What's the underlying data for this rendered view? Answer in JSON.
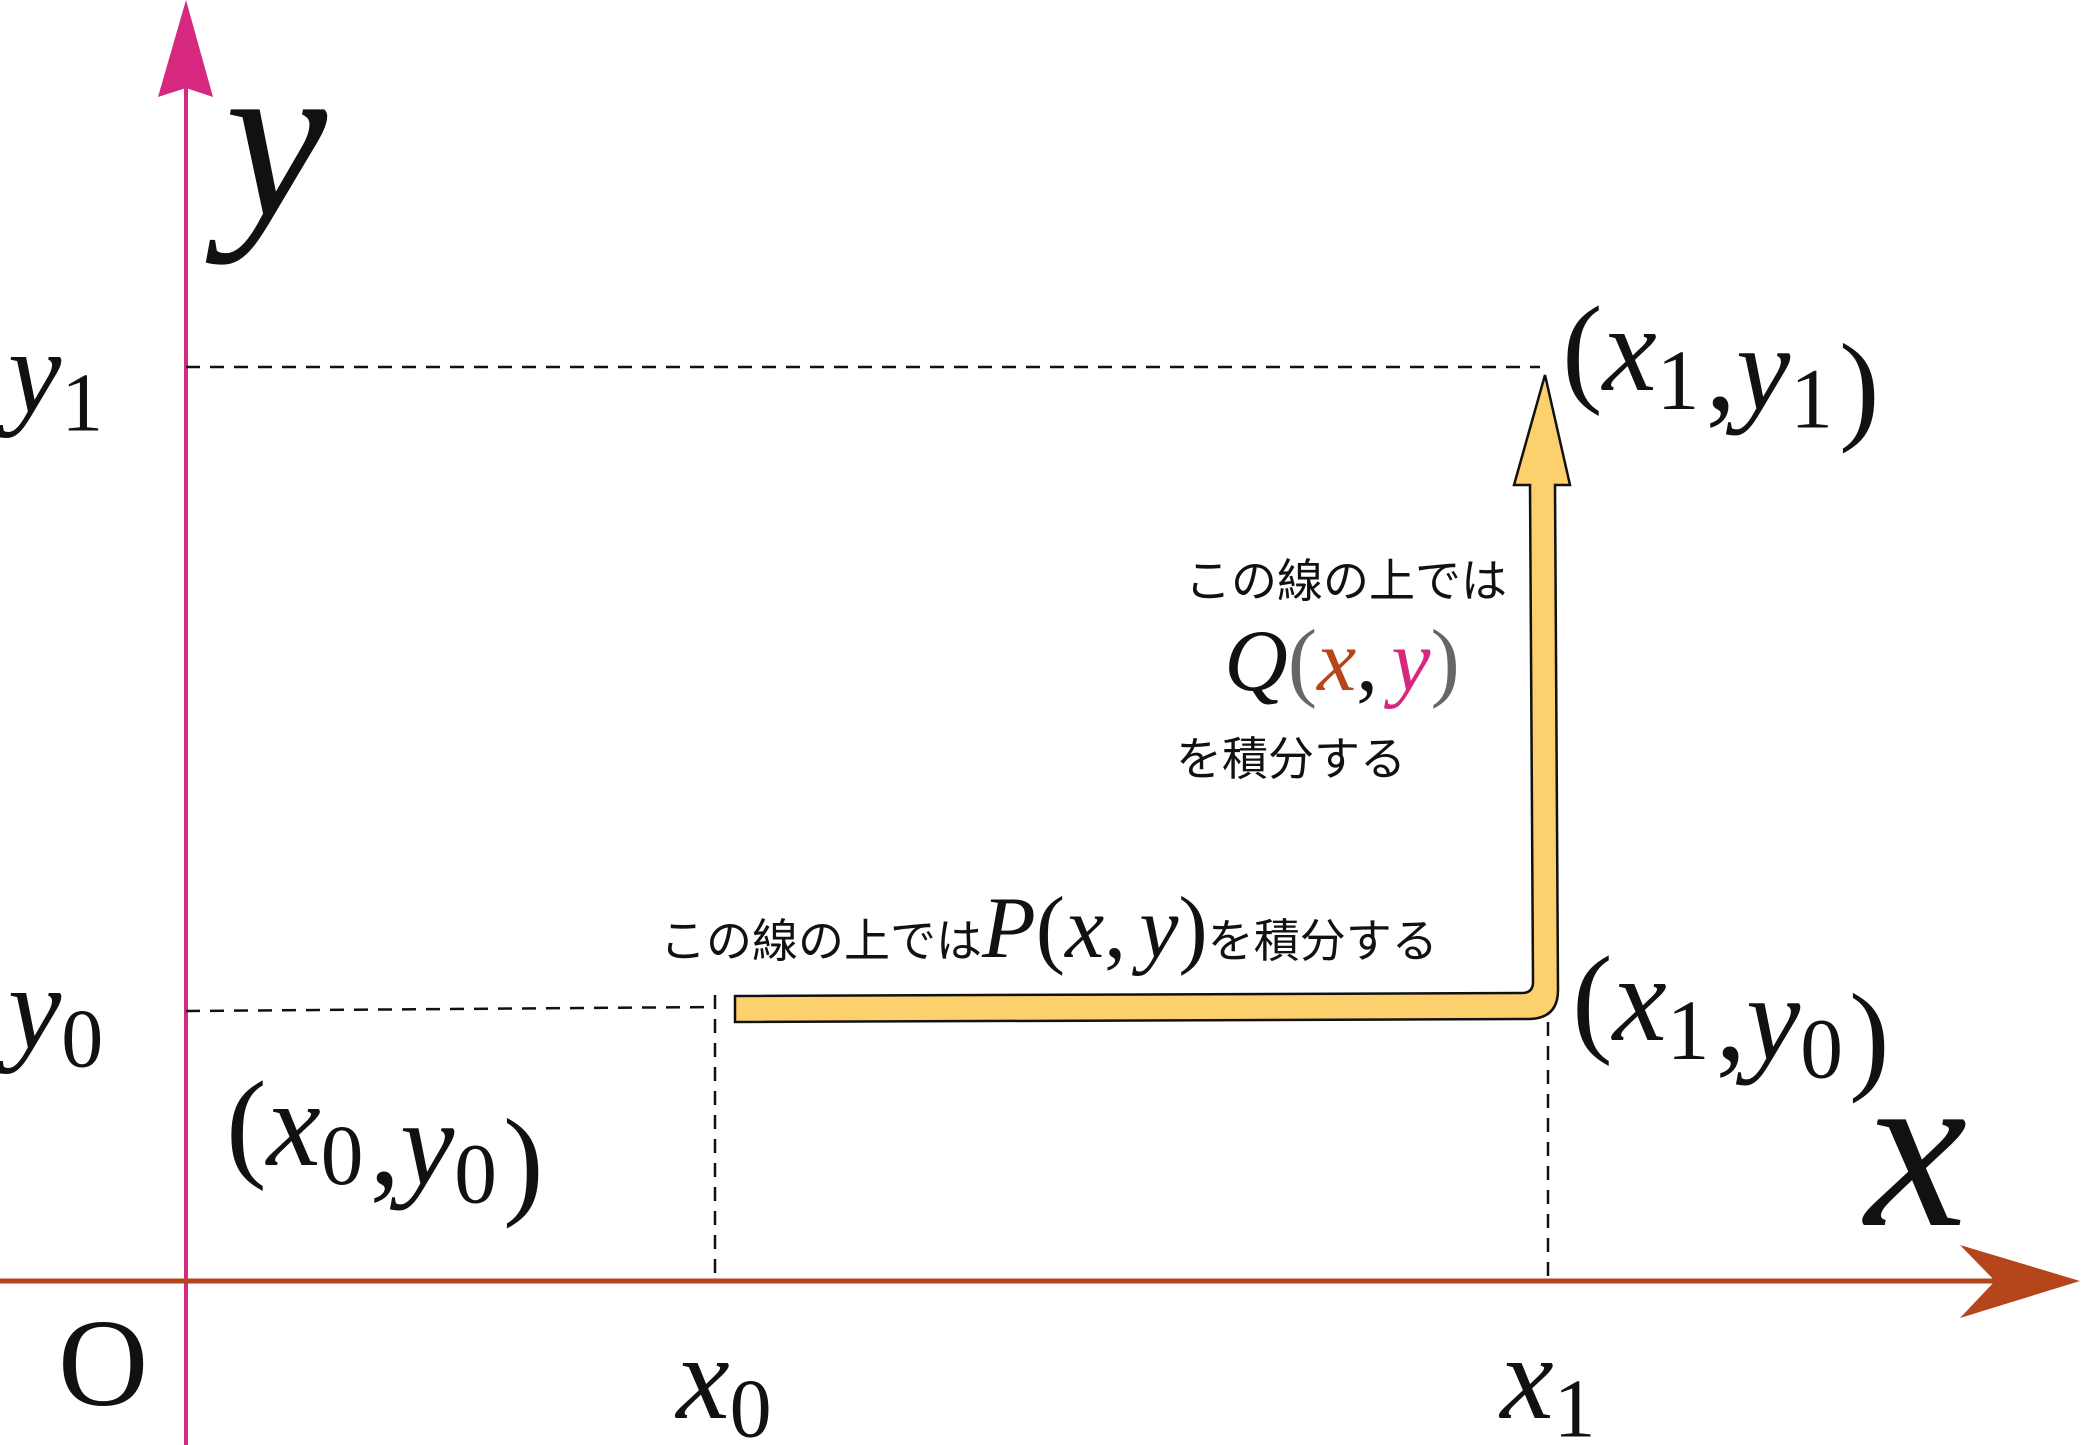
{
  "axes": {
    "y_label": "y",
    "x_label": "x",
    "origin": "O"
  },
  "ticks": {
    "y1": {
      "base": "y",
      "sub": "1"
    },
    "y0": {
      "base": "y",
      "sub": "0"
    },
    "x0": {
      "base": "x",
      "sub": "0"
    },
    "x1": {
      "base": "x",
      "sub": "1"
    }
  },
  "points": {
    "start": {
      "open": "(",
      "x": {
        "base": "x",
        "sub": "0"
      },
      "comma": ",",
      "y": {
        "base": "y",
        "sub": "0"
      },
      "close": ")"
    },
    "corner": {
      "open": "(",
      "x": {
        "base": "x",
        "sub": "1"
      },
      "comma": ",",
      "y": {
        "base": "y",
        "sub": "0"
      },
      "close": ")"
    },
    "end": {
      "open": "(",
      "x": {
        "base": "x",
        "sub": "1"
      },
      "comma": ",",
      "y": {
        "base": "y",
        "sub": "1"
      },
      "close": ")"
    }
  },
  "q_note": {
    "line1": "この線の上では",
    "func": "Q",
    "open": "(",
    "x": "x",
    "comma": ",",
    "y": "y",
    "close": ")",
    "line3": "を積分する"
  },
  "p_note": {
    "before": "この線の上では",
    "func": "P",
    "open": "(",
    "x": "x",
    "comma": ",",
    "y": "y",
    "close": ")",
    "after": "を積分する"
  }
}
